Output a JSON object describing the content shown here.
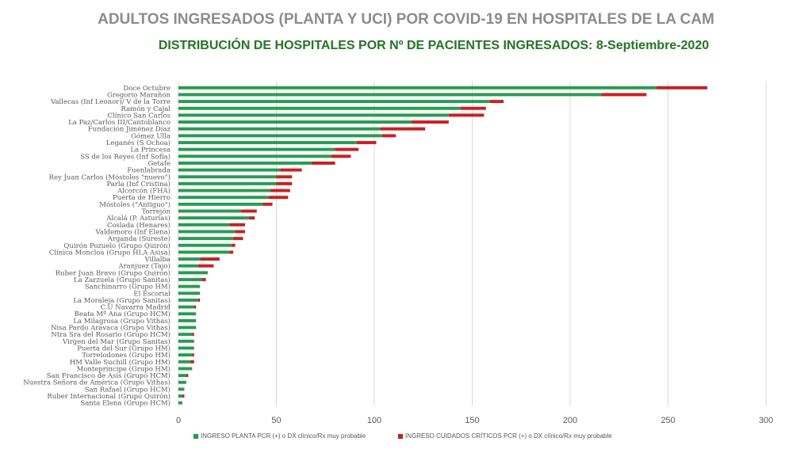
{
  "header": {
    "title": "ADULTOS INGRESADOS (PLANTA Y UCI) POR COVID-19 EN HOSPITALES DE LA CAM",
    "subtitle": "DISTRIBUCIÓN DE HOSPITALES POR Nº DE PACIENTES INGRESADOS: 8-Septiembre-2020"
  },
  "chart_data": {
    "type": "bar",
    "orientation": "horizontal",
    "stacked": true,
    "title": "DISTRIBUCIÓN DE HOSPITALES POR Nº DE PACIENTES INGRESADOS: 8-Septiembre-2020",
    "xlim": [
      0,
      300
    ],
    "xticks": [
      0,
      50,
      100,
      150,
      200,
      250,
      300
    ],
    "grid": true,
    "legend_position": "bottom",
    "categories": [
      "Doce Octubre",
      "Gregorio Marañón",
      "Vallecas (Inf Leonor)/ V de la Torre",
      "Ramón y Cajal",
      "Clínico San Carlos",
      "La Paz/Carlos III/Cantoblanco",
      "Fundación Jiménez Díaz",
      "Gómez Ulla",
      "Leganés (S Ochoa)",
      "La Princesa",
      "SS de los Reyes (Inf Sofía)",
      "Getafe",
      "Fuenlabrada",
      "Rey Juan Carlos (Móstoles \"nuevo\")",
      "Parla (Inf Cristina)",
      "Alcorcón (FHA)",
      "Puerta de Hierro",
      "Móstoles (\"Antiguo\")",
      "Torrejón",
      "Alcalá (P. Asturias)",
      "Coslada (Henares)",
      "Valdemoro (Inf Elena)",
      "Arganda (Sureste)",
      "Quirón Pozuelo (Grupo Quirón)",
      "Clínica Moncloa (Grupo HLA Asisa)",
      "Villalba",
      "Aranjuez (Tajo)",
      "Ruber Juan Bravo (Grupo Quirón)",
      "La Zarzuela (Grupo Sanitas)",
      "Sanchinarro (Grupo HM)",
      "El Escorial",
      "La Moraleja (Grupo Sanitas)",
      "C.U Navarra Madrid",
      "Beata Mª Ana (Grupo HCM)",
      "La Milagrosa (Grupo Vithas)",
      "Nisa Pardo Aravaca (Grupo Vithas)",
      "Ntra Sra del Rosario (Grupo HCM)",
      "Virgen del Mar (Grupo Sanitas)",
      "Puerta del Sur (Grupo HM)",
      "Torrelodones (Grupo HM)",
      "HM Valle Suchill (Grupo HM)",
      "Montepríncipe (Grupo HM)",
      "San Francisco de Asís (Grupo HCM)",
      "Nuestra Señora de América (Grupo Vithas)",
      "San Rafael (Grupo HCM)",
      "Ruber Internacional (Grupo Quirón)",
      "Santa Elena (Grupo HCM)"
    ],
    "series": [
      {
        "name": "INGRESO PLANTA PCR (+) o DX clínico/Rx muy probable",
        "color": "#21a04b",
        "values": [
          244,
          216,
          159,
          144,
          138,
          119,
          103,
          104,
          91,
          80,
          78,
          68,
          52,
          50,
          50,
          47,
          46,
          43,
          32,
          36,
          26,
          29,
          28,
          27,
          26,
          11,
          10,
          15,
          12,
          11,
          11,
          10,
          8,
          9,
          9,
          9,
          7,
          8,
          8,
          7,
          6,
          7,
          4,
          4,
          3,
          2,
          2
        ]
      },
      {
        "name": "INGRESO CUIDADOS CRÍTICOS PCR (+) o DX clínico/Rx muy probable",
        "color": "#d61a1a",
        "values": [
          26,
          23,
          7,
          13,
          18,
          19,
          23,
          7,
          10,
          12,
          10,
          12,
          11,
          8,
          8,
          10,
          10,
          5,
          8,
          3,
          8,
          5,
          5,
          2,
          2,
          10,
          8,
          0,
          2,
          0,
          0,
          1,
          1,
          0,
          0,
          0,
          1,
          0,
          0,
          1,
          2,
          0,
          1,
          0,
          0,
          1,
          0
        ]
      }
    ]
  }
}
